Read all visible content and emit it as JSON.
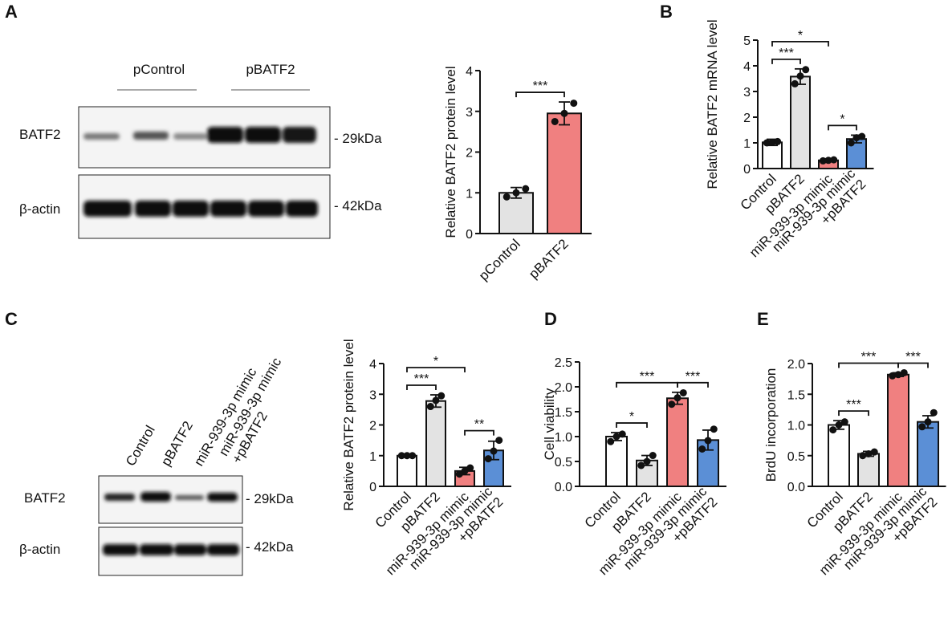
{
  "panel_letters": [
    "A",
    "B",
    "C",
    "D",
    "E"
  ],
  "blots": {
    "A": {
      "groups": [
        "pControl",
        "pBATF2"
      ],
      "rows": [
        "BATF2",
        "β-actin"
      ],
      "sizes": [
        "- 29kDa",
        "- 42kDa"
      ]
    },
    "C": {
      "lanes": [
        "Control",
        "pBATF2",
        "miR-939-3p mimic",
        "miR-939-3p mimic\n+pBATF2"
      ],
      "rows": [
        "BATF2",
        "β-actin"
      ],
      "sizes": [
        "- 29kDa",
        "- 42kDa"
      ]
    }
  },
  "chart_data": [
    {
      "type": "bar",
      "ylabel": "Relative BATF2 protein level",
      "categories": [
        "pControl",
        "pBATF2"
      ],
      "colors": [
        "#e3e3e3",
        "#f08080"
      ],
      "values": [
        1.0,
        2.95
      ],
      "errors": [
        0.13,
        0.28
      ],
      "points": [
        [
          0.9,
          1.0,
          1.1
        ],
        [
          2.75,
          2.95,
          3.2
        ]
      ],
      "ylim": [
        0,
        4
      ],
      "yticks": [
        0,
        1,
        2,
        3,
        4
      ],
      "comparisons": [
        {
          "groups": [
            "pControl",
            "pBATF2"
          ],
          "label": "***"
        }
      ]
    },
    {
      "type": "bar",
      "ylabel": "Relative BATF2 mRNA level",
      "categories": [
        "Control",
        "pBATF2",
        "miR-939-3p mimic",
        "miR-939-3p mimic\n+pBATF2"
      ],
      "colors": [
        "#ffffff",
        "#e3e3e3",
        "#f08080",
        "#5b8fd6"
      ],
      "values": [
        1.02,
        3.58,
        0.32,
        1.15
      ],
      "errors": [
        0.12,
        0.3,
        0.05,
        0.15
      ],
      "points": [
        [
          1.0,
          1.02,
          1.05
        ],
        [
          3.3,
          3.6,
          3.85
        ],
        [
          0.3,
          0.32,
          0.34
        ],
        [
          1.0,
          1.2,
          1.25
        ]
      ],
      "ylim": [
        0,
        5
      ],
      "yticks": [
        0,
        1,
        2,
        3,
        4,
        5
      ],
      "comparisons": [
        {
          "groups": [
            "Control",
            "pBATF2"
          ],
          "label": "***"
        },
        {
          "groups": [
            "Control",
            "miR-939-3p mimic"
          ],
          "label": "*"
        },
        {
          "groups": [
            "miR-939-3p mimic",
            "miR-939-3p mimic\n+pBATF2"
          ],
          "label": "*"
        }
      ]
    },
    {
      "type": "bar",
      "ylabel": "Relative BATF2 protein level",
      "categories": [
        "Control",
        "pBATF2",
        "miR-939-3p mimic",
        "miR-939-3p mimic\n+pBATF2"
      ],
      "colors": [
        "#ffffff",
        "#e3e3e3",
        "#f08080",
        "#5b8fd6"
      ],
      "values": [
        1.0,
        2.78,
        0.5,
        1.17
      ],
      "errors": [
        0.02,
        0.2,
        0.12,
        0.3
      ],
      "points": [
        [
          1.0,
          1.0,
          1.0
        ],
        [
          2.6,
          2.8,
          2.95
        ],
        [
          0.4,
          0.5,
          0.6
        ],
        [
          0.9,
          1.15,
          1.5
        ]
      ],
      "ylim": [
        0,
        4
      ],
      "yticks": [
        0,
        1,
        2,
        3,
        4
      ],
      "comparisons": [
        {
          "groups": [
            "Control",
            "pBATF2"
          ],
          "label": "***"
        },
        {
          "groups": [
            "Control",
            "miR-939-3p mimic"
          ],
          "label": "*"
        },
        {
          "groups": [
            "miR-939-3p mimic",
            "miR-939-3p mimic\n+pBATF2"
          ],
          "label": "**"
        }
      ]
    },
    {
      "type": "bar",
      "ylabel": "Cell viability",
      "categories": [
        "Control",
        "pBATF2",
        "miR-939-3p mimic",
        "miR-939-3p mimic\n+pBATF2"
      ],
      "colors": [
        "#ffffff",
        "#e3e3e3",
        "#f08080",
        "#5b8fd6"
      ],
      "values": [
        1.0,
        0.52,
        1.77,
        0.93
      ],
      "errors": [
        0.08,
        0.1,
        0.12,
        0.2
      ],
      "points": [
        [
          0.9,
          1.0,
          1.05
        ],
        [
          0.42,
          0.5,
          0.62
        ],
        [
          1.65,
          1.78,
          1.88
        ],
        [
          0.75,
          0.92,
          1.15
        ]
      ],
      "ylim": [
        0,
        2.5
      ],
      "yticks": [
        {
          "value": 0,
          "label": "0.0"
        },
        0.5,
        {
          "value": 1,
          "label": "1.0"
        },
        1.5,
        {
          "value": 2,
          "label": "2.0"
        },
        2.5
      ],
      "comparisons": [
        {
          "groups": [
            "Control",
            "pBATF2"
          ],
          "label": "*"
        },
        {
          "groups": [
            "Control",
            "miR-939-3p mimic"
          ],
          "label": "***"
        },
        {
          "groups": [
            "miR-939-3p mimic",
            "miR-939-3p mimic\n+pBATF2"
          ],
          "label": "***"
        }
      ]
    },
    {
      "type": "bar",
      "ylabel": "BrdU incorporation",
      "categories": [
        "Control",
        "pBATF2",
        "miR-939-3p mimic",
        "miR-939-3p mimic\n+pBATF2"
      ],
      "colors": [
        "#ffffff",
        "#e3e3e3",
        "#f08080",
        "#5b8fd6"
      ],
      "values": [
        1.0,
        0.53,
        1.82,
        1.05
      ],
      "errors": [
        0.07,
        0.04,
        0.03,
        0.1
      ],
      "points": [
        [
          0.92,
          1.0,
          1.05
        ],
        [
          0.5,
          0.53,
          0.56
        ],
        [
          1.8,
          1.82,
          1.85
        ],
        [
          0.97,
          1.05,
          1.2
        ]
      ],
      "ylim": [
        0,
        2
      ],
      "yticks": [
        {
          "value": 0,
          "label": "0.0"
        },
        0.5,
        {
          "value": 1,
          "label": "1.0"
        },
        1.5,
        {
          "value": 2,
          "label": "2.0"
        }
      ],
      "comparisons": [
        {
          "groups": [
            "Control",
            "pBATF2"
          ],
          "label": "***"
        },
        {
          "groups": [
            "Control",
            "miR-939-3p mimic"
          ],
          "label": "***"
        },
        {
          "groups": [
            "miR-939-3p mimic",
            "miR-939-3p mimic\n+pBATF2"
          ],
          "label": "***"
        }
      ]
    }
  ]
}
